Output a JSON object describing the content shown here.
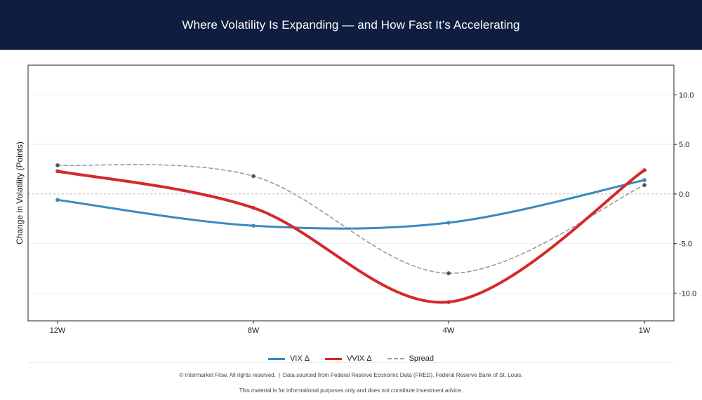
{
  "header": {
    "title": "Where Volatility Is Expanding — and How Fast It’s Accelerating"
  },
  "chart_data": {
    "type": "line",
    "categories": [
      "12W",
      "8W",
      "4W",
      "1W"
    ],
    "series": [
      {
        "name": "VIX Δ",
        "values": [
          -0.6,
          -3.2,
          -2.9,
          1.4
        ],
        "color": "#3a8ac0",
        "style": "solid"
      },
      {
        "name": "VVIX Δ",
        "values": [
          2.3,
          -1.4,
          -10.9,
          2.4
        ],
        "color": "#d32a2a",
        "style": "solid"
      },
      {
        "name": "Spread",
        "values": [
          2.9,
          1.8,
          -8.0,
          0.9
        ],
        "color": "#9a9a9c",
        "style": "dashed"
      }
    ],
    "title": "Where Volatility Is Expanding — and How Fast It’s Accelerating",
    "xlabel": "",
    "ylabel": "Change in Volatility (Points)",
    "ylim": [
      -12.8,
      13.0
    ],
    "yticks": [
      -10.0,
      -5.0,
      0.0,
      5.0,
      10.0
    ],
    "ytick_labels": [
      "-10.0",
      "-5.0",
      "0.0",
      "5.0",
      "10.0"
    ],
    "y_axis_side": "right",
    "zero_line": true,
    "grid": true,
    "legend_position": "bottom-center"
  },
  "footer": {
    "copyright": "© Intermarket Flow. All rights reserved.",
    "separator": "|",
    "source": "Data sourced from Federal Reserve Economic Data (FRED), Federal Reserve Bank of St. Louis.",
    "disclaimer": "This material is for informational purposes only and does not constitute investment advice."
  }
}
